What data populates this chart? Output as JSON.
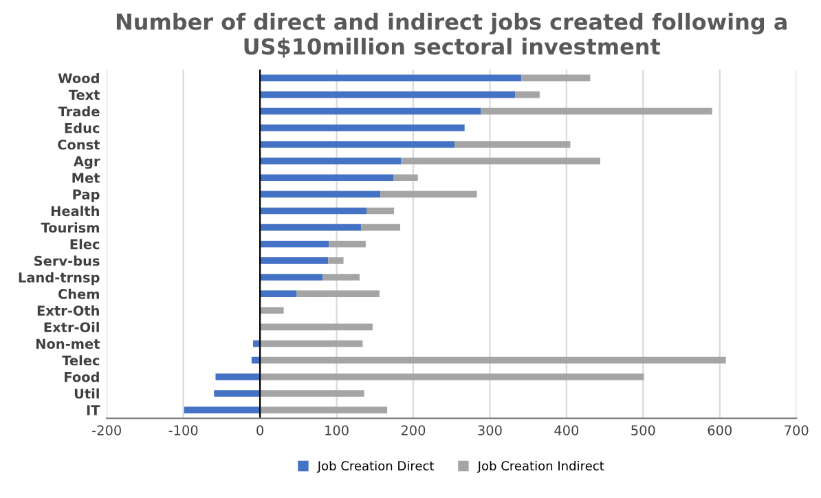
{
  "chart_data": {
    "type": "bar",
    "orientation": "horizontal",
    "stacked": true,
    "title": "Number of direct and indirect jobs created following a\nUS$10million sectoral investment",
    "categories": [
      "Wood",
      "Text",
      "Trade",
      "Educ",
      "Const",
      "Agr",
      "Met",
      "Pap",
      "Health",
      "Tourism",
      "Elec",
      "Serv-bus",
      "Land-trnsp",
      "Chem",
      "Extr-Oth",
      "Extr-Oil",
      "Non-met",
      "Telec",
      "Food",
      "Util",
      "IT"
    ],
    "series": [
      {
        "name": "Job Creation Direct",
        "color": "#4472c4",
        "values": [
          341,
          333,
          288,
          267,
          254,
          184,
          174,
          157,
          139,
          132,
          90,
          89,
          82,
          48,
          0,
          0,
          -9,
          -11,
          -58,
          -60,
          -99
        ]
      },
      {
        "name": "Job Creation Indirect",
        "color": "#a5a5a5",
        "values": [
          90,
          32,
          302,
          0,
          151,
          260,
          32,
          126,
          36,
          51,
          48,
          20,
          48,
          108,
          31,
          147,
          134,
          608,
          501,
          136,
          166
        ]
      }
    ],
    "xlim": [
      -200,
      700
    ],
    "xticks": [
      -200,
      -100,
      0,
      100,
      200,
      300,
      400,
      500,
      600,
      700
    ],
    "grid": "x",
    "legend": "bottom"
  }
}
